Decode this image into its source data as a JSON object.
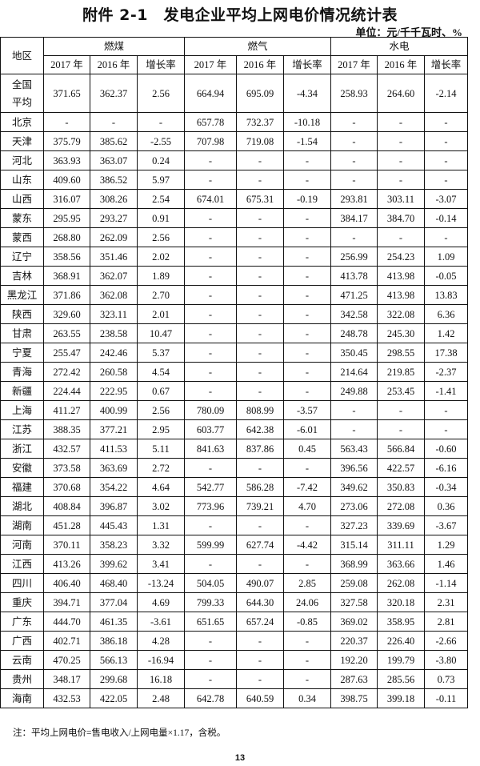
{
  "title": "附件 2-1　发电企业平均上网电价情况统计表",
  "unit": "单位：元/千千瓦时、%",
  "header": {
    "region": "地区",
    "groups": [
      "燃煤",
      "燃气",
      "水电"
    ],
    "sub": [
      "2017 年",
      "2016 年",
      "增长率",
      "2017 年",
      "2016 年",
      "增长率",
      "2017 年",
      "2016 年",
      "增长率"
    ]
  },
  "rows": [
    {
      "region": "全国平均",
      "v": [
        "371.65",
        "362.37",
        "2.56",
        "664.94",
        "695.09",
        "-4.34",
        "258.93",
        "264.60",
        "-2.14"
      ]
    },
    {
      "region": "北京",
      "v": [
        "-",
        "-",
        "-",
        "657.78",
        "732.37",
        "-10.18",
        "-",
        "-",
        "-"
      ]
    },
    {
      "region": "天津",
      "v": [
        "375.79",
        "385.62",
        "-2.55",
        "707.98",
        "719.08",
        "-1.54",
        "-",
        "-",
        "-"
      ]
    },
    {
      "region": "河北",
      "v": [
        "363.93",
        "363.07",
        "0.24",
        "-",
        "-",
        "-",
        "-",
        "-",
        "-"
      ]
    },
    {
      "region": "山东",
      "v": [
        "409.60",
        "386.52",
        "5.97",
        "-",
        "-",
        "-",
        "-",
        "-",
        "-"
      ]
    },
    {
      "region": "山西",
      "v": [
        "316.07",
        "308.26",
        "2.54",
        "674.01",
        "675.31",
        "-0.19",
        "293.81",
        "303.11",
        "-3.07"
      ]
    },
    {
      "region": "蒙东",
      "v": [
        "295.95",
        "293.27",
        "0.91",
        "-",
        "-",
        "-",
        "384.17",
        "384.70",
        "-0.14"
      ]
    },
    {
      "region": "蒙西",
      "v": [
        "268.80",
        "262.09",
        "2.56",
        "-",
        "-",
        "-",
        "-",
        "-",
        "-"
      ]
    },
    {
      "region": "辽宁",
      "v": [
        "358.56",
        "351.46",
        "2.02",
        "-",
        "-",
        "-",
        "256.99",
        "254.23",
        "1.09"
      ]
    },
    {
      "region": "吉林",
      "v": [
        "368.91",
        "362.07",
        "1.89",
        "-",
        "-",
        "-",
        "413.78",
        "413.98",
        "-0.05"
      ]
    },
    {
      "region": "黑龙江",
      "v": [
        "371.86",
        "362.08",
        "2.70",
        "-",
        "-",
        "-",
        "471.25",
        "413.98",
        "13.83"
      ]
    },
    {
      "region": "陕西",
      "v": [
        "329.60",
        "323.11",
        "2.01",
        "-",
        "-",
        "-",
        "342.58",
        "322.08",
        "6.36"
      ]
    },
    {
      "region": "甘肃",
      "v": [
        "263.55",
        "238.58",
        "10.47",
        "-",
        "-",
        "-",
        "248.78",
        "245.30",
        "1.42"
      ]
    },
    {
      "region": "宁夏",
      "v": [
        "255.47",
        "242.46",
        "5.37",
        "-",
        "-",
        "-",
        "350.45",
        "298.55",
        "17.38"
      ]
    },
    {
      "region": "青海",
      "v": [
        "272.42",
        "260.58",
        "4.54",
        "-",
        "-",
        "-",
        "214.64",
        "219.85",
        "-2.37"
      ]
    },
    {
      "region": "新疆",
      "v": [
        "224.44",
        "222.95",
        "0.67",
        "-",
        "-",
        "-",
        "249.88",
        "253.45",
        "-1.41"
      ]
    },
    {
      "region": "上海",
      "v": [
        "411.27",
        "400.99",
        "2.56",
        "780.09",
        "808.99",
        "-3.57",
        "-",
        "-",
        "-"
      ]
    },
    {
      "region": "江苏",
      "v": [
        "388.35",
        "377.21",
        "2.95",
        "603.77",
        "642.38",
        "-6.01",
        "-",
        "-",
        "-"
      ]
    },
    {
      "region": "浙江",
      "v": [
        "432.57",
        "411.53",
        "5.11",
        "841.63",
        "837.86",
        "0.45",
        "563.43",
        "566.84",
        "-0.60"
      ]
    },
    {
      "region": "安徽",
      "v": [
        "373.58",
        "363.69",
        "2.72",
        "-",
        "-",
        "-",
        "396.56",
        "422.57",
        "-6.16"
      ]
    },
    {
      "region": "福建",
      "v": [
        "370.68",
        "354.22",
        "4.64",
        "542.77",
        "586.28",
        "-7.42",
        "349.62",
        "350.83",
        "-0.34"
      ]
    },
    {
      "region": "湖北",
      "v": [
        "408.84",
        "396.87",
        "3.02",
        "773.96",
        "739.21",
        "4.70",
        "273.06",
        "272.08",
        "0.36"
      ]
    },
    {
      "region": "湖南",
      "v": [
        "451.28",
        "445.43",
        "1.31",
        "-",
        "-",
        "-",
        "327.23",
        "339.69",
        "-3.67"
      ]
    },
    {
      "region": "河南",
      "v": [
        "370.11",
        "358.23",
        "3.32",
        "599.99",
        "627.74",
        "-4.42",
        "315.14",
        "311.11",
        "1.29"
      ]
    },
    {
      "region": "江西",
      "v": [
        "413.26",
        "399.62",
        "3.41",
        "-",
        "-",
        "-",
        "368.99",
        "363.66",
        "1.46"
      ]
    },
    {
      "region": "四川",
      "v": [
        "406.40",
        "468.40",
        "-13.24",
        "504.05",
        "490.07",
        "2.85",
        "259.08",
        "262.08",
        "-1.14"
      ]
    },
    {
      "region": "重庆",
      "v": [
        "394.71",
        "377.04",
        "4.69",
        "799.33",
        "644.30",
        "24.06",
        "327.58",
        "320.18",
        "2.31"
      ]
    },
    {
      "region": "广东",
      "v": [
        "444.70",
        "461.35",
        "-3.61",
        "651.65",
        "657.24",
        "-0.85",
        "369.02",
        "358.95",
        "2.81"
      ]
    },
    {
      "region": "广西",
      "v": [
        "402.71",
        "386.18",
        "4.28",
        "-",
        "-",
        "-",
        "220.37",
        "226.40",
        "-2.66"
      ]
    },
    {
      "region": "云南",
      "v": [
        "470.25",
        "566.13",
        "-16.94",
        "-",
        "-",
        "-",
        "192.20",
        "199.79",
        "-3.80"
      ]
    },
    {
      "region": "贵州",
      "v": [
        "348.17",
        "299.68",
        "16.18",
        "-",
        "-",
        "-",
        "287.63",
        "285.56",
        "0.73"
      ]
    },
    {
      "region": "海南",
      "v": [
        "432.53",
        "422.05",
        "2.48",
        "642.78",
        "640.59",
        "0.34",
        "398.75",
        "399.18",
        "-0.11"
      ]
    }
  ],
  "note": "注：平均上网电价=售电收入/上网电量×1.17，含税。",
  "page_number": "13"
}
